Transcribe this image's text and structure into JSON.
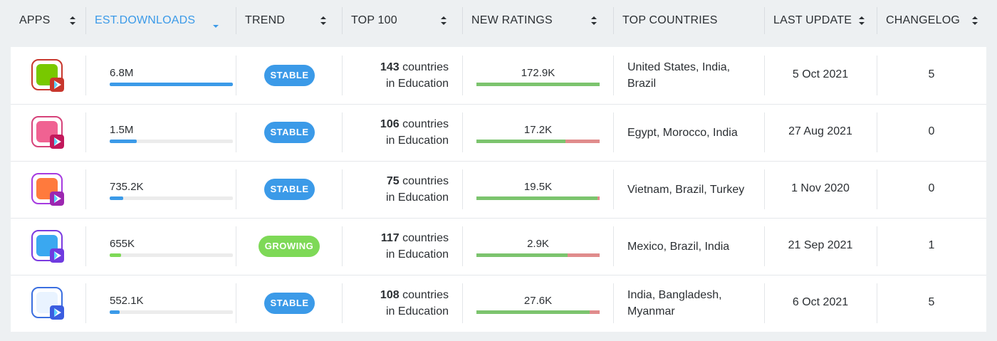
{
  "header": {
    "apps": "APPS",
    "est_downloads": "EST.DOWNLOADS",
    "trend": "TREND",
    "top100": "TOP 100",
    "new_ratings": "NEW RATINGS",
    "top_countries": "TOP COUNTRIES",
    "last_update": "LAST UPDATE",
    "changelog": "CHANGELOG"
  },
  "colors": {
    "accent": "#3b9ae8",
    "stable": "#3b9ae8",
    "growing": "#7ed957",
    "positive": "#7cc46e",
    "negative": "#e08c8c"
  },
  "rows": [
    {
      "icon": "duolingo-app-icon",
      "downloads": "6.8M",
      "downloads_fraction": 1.0,
      "trend": "STABLE",
      "top100_count": "143",
      "top100_text1": " countries",
      "top100_text2": "in Education",
      "ratings": "172.9K",
      "ratings_positive_fraction": 1.0,
      "countries_line1": "United States, India,",
      "countries_line2": "Brazil",
      "last_update": "5 Oct 2021",
      "changelog": "5"
    },
    {
      "icon": "language-app-icon",
      "downloads": "1.5M",
      "downloads_fraction": 0.22,
      "trend": "STABLE",
      "top100_count": "106",
      "top100_text1": " countries",
      "top100_text2": "in Education",
      "ratings": "17.2K",
      "ratings_positive_fraction": 0.72,
      "countries_line1": "Egypt, Morocco, India",
      "countries_line2": "",
      "last_update": "27 Aug 2021",
      "changelog": "0"
    },
    {
      "icon": "globe-app-icon",
      "downloads": "735.2K",
      "downloads_fraction": 0.11,
      "trend": "STABLE",
      "top100_count": "75",
      "top100_text1": " countries",
      "top100_text2": "in Education",
      "ratings": "19.5K",
      "ratings_positive_fraction": 0.98,
      "countries_line1": "Vietnam, Brazil, Turkey",
      "countries_line2": "",
      "last_update": "1 Nov 2020",
      "changelog": "0"
    },
    {
      "icon": "cartoon-app-icon",
      "downloads": "655K",
      "downloads_fraction": 0.09,
      "trend": "GROWING",
      "top100_count": "117",
      "top100_text1": " countries",
      "top100_text2": "in Education",
      "ratings": "2.9K",
      "ratings_positive_fraction": 0.74,
      "countries_line1": "Mexico, Brazil, India",
      "countries_line2": "",
      "last_update": "21 Sep 2021",
      "changelog": "1"
    },
    {
      "icon": "flower-app-icon",
      "downloads": "552.1K",
      "downloads_fraction": 0.08,
      "trend": "STABLE",
      "top100_count": "108",
      "top100_text1": " countries",
      "top100_text2": "in Education",
      "ratings": "27.6K",
      "ratings_positive_fraction": 0.92,
      "countries_line1": "India, Bangladesh,",
      "countries_line2": "Myanmar",
      "last_update": "6 Oct 2021",
      "changelog": "5"
    }
  ]
}
